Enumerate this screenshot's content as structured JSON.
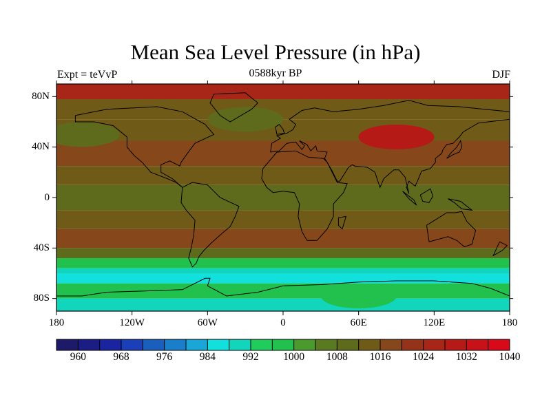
{
  "title": "Mean Sea Level Pressure (in hPa)",
  "subtitle": "0588kyr BP",
  "left_label": "Expt = teVvP",
  "right_label": "DJF",
  "axes": {
    "x_ticks": [
      "180",
      "120W",
      "60W",
      "0",
      "60E",
      "120E",
      "180"
    ],
    "y_ticks": [
      "80N",
      "40N",
      "0",
      "40S",
      "80S"
    ]
  },
  "colorbar": {
    "labels": [
      "960",
      "968",
      "976",
      "984",
      "992",
      "1000",
      "1008",
      "1016",
      "1024",
      "1032",
      "1040"
    ],
    "colors": [
      "#1e1a6a",
      "#1b1d85",
      "#1a24a0",
      "#1a3fb8",
      "#1b5fbe",
      "#1a7fca",
      "#18a7d6",
      "#12e0dc",
      "#12d6bc",
      "#1fcc5c",
      "#22c14e",
      "#4a9a2e",
      "#5a7a22",
      "#5e6a1c",
      "#6f5a18",
      "#86481a",
      "#95321a",
      "#a82618",
      "#b51a16",
      "#c8121a",
      "#d80a1a"
    ]
  },
  "chart_data": {
    "type": "heatmap",
    "title": "Mean Sea Level Pressure (in hPa)",
    "subtitle": "0588kyr BP",
    "xlabel": "",
    "ylabel": "",
    "xlim": [
      -180,
      180
    ],
    "ylim": [
      -90,
      90
    ],
    "units": "hPa",
    "levels": [
      960,
      964,
      968,
      972,
      976,
      980,
      984,
      988,
      992,
      996,
      1000,
      1004,
      1008,
      1012,
      1016,
      1020,
      1024,
      1028,
      1032,
      1036,
      1040
    ],
    "zonal_bands": [
      {
        "lat": [
          78,
          90
        ],
        "value": 1026
      },
      {
        "lat": [
          62,
          78
        ],
        "value": 1014
      },
      {
        "lat": [
          45,
          62
        ],
        "value": 1014
      },
      {
        "lat": [
          25,
          45
        ],
        "value": 1018
      },
      {
        "lat": [
          10,
          25
        ],
        "value": 1014
      },
      {
        "lat": [
          -10,
          10
        ],
        "value": 1010
      },
      {
        "lat": [
          -25,
          -10
        ],
        "value": 1012
      },
      {
        "lat": [
          -40,
          -25
        ],
        "value": 1017
      },
      {
        "lat": [
          -48,
          -40
        ],
        "value": 1008
      },
      {
        "lat": [
          -56,
          -48
        ],
        "value": 996
      },
      {
        "lat": [
          -60,
          -56
        ],
        "value": 990
      },
      {
        "lat": [
          -68,
          -60
        ],
        "value": 986
      },
      {
        "lat": [
          -80,
          -68
        ],
        "value": 996
      },
      {
        "lat": [
          -90,
          -80
        ],
        "value": 990
      }
    ],
    "features": [
      {
        "name": "Siberian High",
        "lon": 90,
        "lat": 48,
        "value": 1030
      },
      {
        "name": "North Pacific",
        "lon": -160,
        "lat": 50,
        "value": 1010
      },
      {
        "name": "Icelandic Low",
        "lon": -30,
        "lat": 62,
        "value": 1008
      },
      {
        "name": "Antarctic interior",
        "lon": 60,
        "lat": -78,
        "value": 998
      }
    ]
  }
}
